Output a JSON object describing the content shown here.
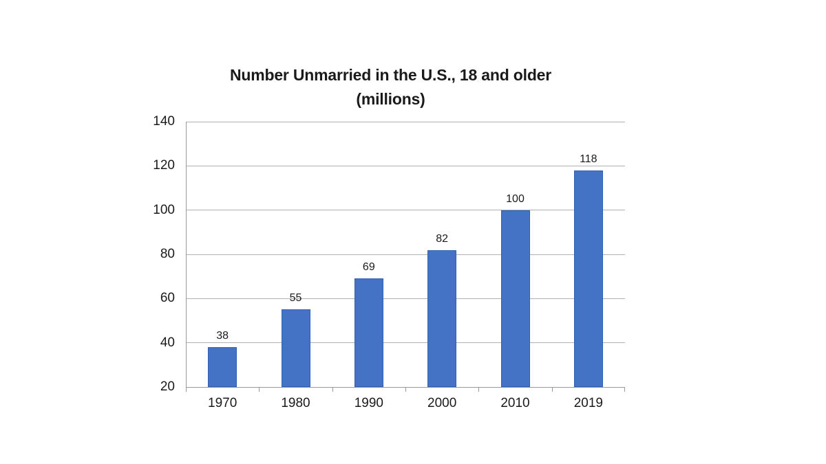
{
  "chart_data": {
    "type": "bar",
    "title": "Number Unmarried in the U.S., 18 and older",
    "subtitle": "(millions)",
    "categories": [
      "1970",
      "1980",
      "1990",
      "2000",
      "2010",
      "2019"
    ],
    "values": [
      38,
      55,
      69,
      82,
      100,
      118
    ],
    "xlabel": "",
    "ylabel": "",
    "ylim": [
      20,
      140
    ],
    "yticks": [
      20,
      40,
      60,
      80,
      100,
      120,
      140
    ],
    "grid": "horizontal",
    "legend": "none",
    "data_labels": true,
    "colors": {
      "bar": "#4472C4",
      "bar_border": "#3260AE",
      "gridline": "#B0B0B0",
      "axis": "#999999",
      "text": "#1A1A1A",
      "background": "#FFFFFF"
    }
  }
}
